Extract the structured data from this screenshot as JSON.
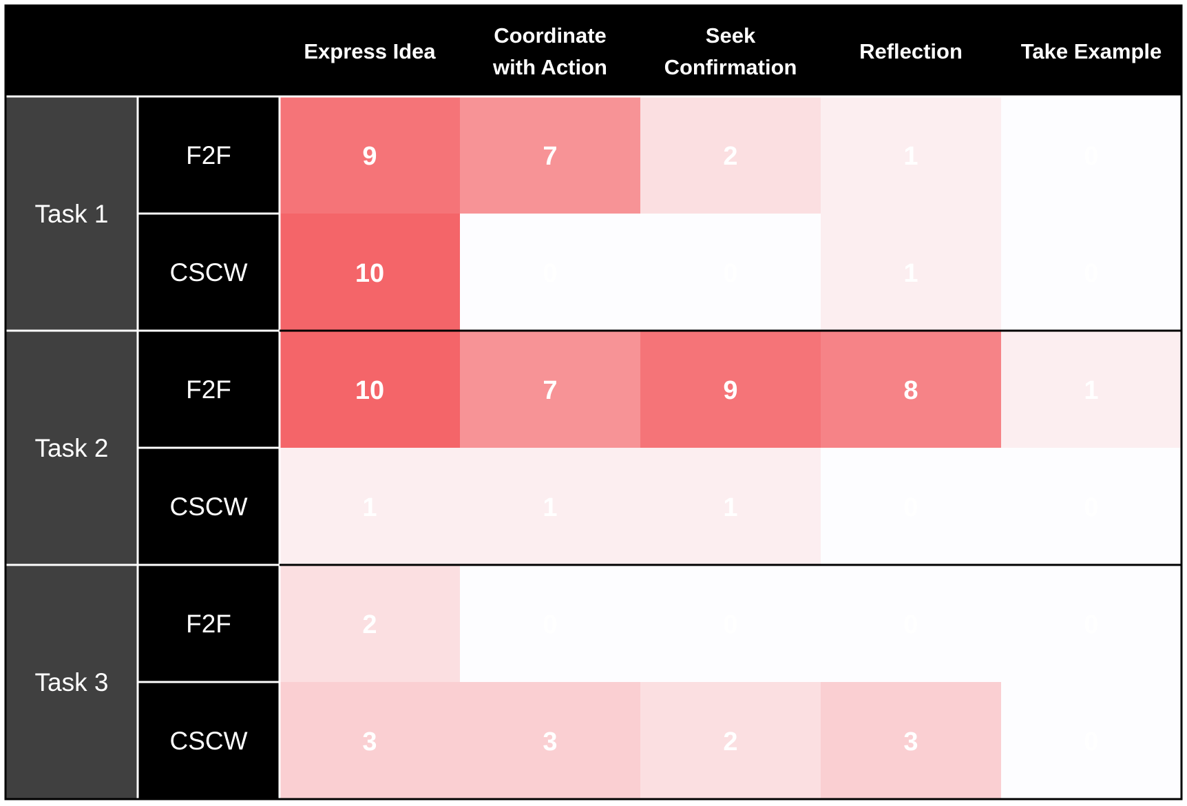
{
  "chart_data": {
    "type": "heatmap",
    "title": "",
    "columns": [
      "Express Idea",
      "Coordinate with Action",
      "Seek Confirmation",
      "Reflection",
      "Take Example"
    ],
    "column_lines": [
      [
        "Express Idea"
      ],
      [
        "Coordinate",
        "with Action"
      ],
      [
        "Seek",
        "Confirmation"
      ],
      [
        "Reflection"
      ],
      [
        "Take Example"
      ]
    ],
    "groups": [
      "Task 1",
      "Task 2",
      "Task 3"
    ],
    "conditions": [
      "F2F",
      "CSCW"
    ],
    "rows": [
      {
        "group": "Task 1",
        "condition": "F2F",
        "values": [
          9,
          7,
          2,
          1,
          0
        ]
      },
      {
        "group": "Task 1",
        "condition": "CSCW",
        "values": [
          10,
          0,
          0,
          1,
          0
        ]
      },
      {
        "group": "Task 2",
        "condition": "F2F",
        "values": [
          10,
          7,
          9,
          8,
          1
        ]
      },
      {
        "group": "Task 2",
        "condition": "CSCW",
        "values": [
          1,
          1,
          1,
          0,
          0
        ]
      },
      {
        "group": "Task 3",
        "condition": "F2F",
        "values": [
          2,
          0,
          0,
          0,
          0
        ]
      },
      {
        "group": "Task 3",
        "condition": "CSCW",
        "values": [
          3,
          3,
          2,
          3,
          0
        ]
      }
    ],
    "value_range": [
      0,
      10
    ],
    "colors": {
      "low": "#fdfdff",
      "high": "#f46569",
      "header_bg": "#000000",
      "group_bg": "#404040",
      "condition_bg": "#000000",
      "text": "#ffffff"
    }
  }
}
